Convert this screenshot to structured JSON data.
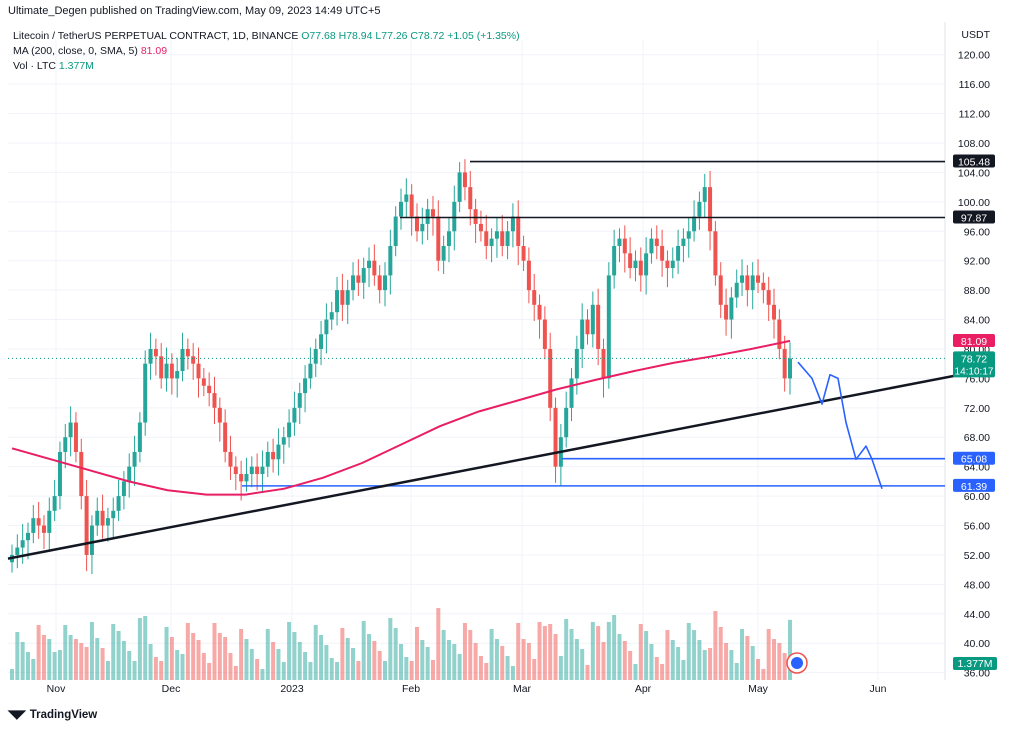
{
  "header": {
    "publisher_line": "Ultimate_Degen published on TradingView.com, May 09, 2023 14:49 UTC+5"
  },
  "legend": {
    "symbol": "Litecoin / TetherUS PERPETUAL CONTRACT, 1D, BINANCE",
    "ohlc": "O77.68 H78.94 L77.26 C78.72 +1.05 (+1.35%)",
    "ma_label": "MA (200, close, 0, SMA, 5)",
    "ma_value": "81.09",
    "vol_label": "Vol · LTC",
    "vol_value": "1.377M"
  },
  "footer": {
    "brand": "TradingView"
  },
  "chart_data": {
    "type": "candlestick",
    "currency_label": "USDT",
    "y_ticks": [
      "120.00",
      "116.00",
      "112.00",
      "108.00",
      "104.00",
      "100.00",
      "96.00",
      "92.00",
      "88.00",
      "84.00",
      "80.00",
      "76.00",
      "72.00",
      "68.00",
      "64.00",
      "60.00",
      "56.00",
      "52.00",
      "48.00",
      "44.00",
      "40.00",
      "36.00"
    ],
    "ylim": [
      35,
      122
    ],
    "x_ticks": [
      "Nov",
      "Dec",
      "2023",
      "Feb",
      "Mar",
      "Apr",
      "May",
      "Jun"
    ],
    "price_labels": [
      {
        "text": "105.48",
        "value": 105.48,
        "color": "#131722"
      },
      {
        "text": "97.87",
        "value": 97.87,
        "color": "#131722"
      },
      {
        "text": "81.09",
        "value": 81.09,
        "color": "#e91e63"
      },
      {
        "text": "78.72",
        "value": 78.72,
        "color": "#089981"
      },
      {
        "text": "65.08",
        "value": 65.08,
        "color": "#2962ff"
      },
      {
        "text": "61.39",
        "value": 61.39,
        "color": "#2962ff"
      }
    ],
    "countdown": "14:10:17",
    "volume_label": "1.377M",
    "horizontal_levels": [
      105.48,
      97.87,
      65.08,
      61.39
    ],
    "candles_close_approx": [
      52,
      53,
      54,
      55,
      57,
      56,
      55,
      58,
      60,
      66,
      68,
      70,
      66,
      60,
      52,
      56,
      58,
      56,
      57,
      58,
      60,
      62,
      64,
      66,
      70,
      78,
      80,
      79,
      76,
      78,
      76,
      77,
      80,
      79,
      78,
      76,
      75,
      74,
      72,
      70,
      66,
      64,
      63,
      62,
      63,
      64,
      63,
      64,
      66,
      65,
      67,
      68,
      70,
      72,
      74,
      76,
      78,
      80,
      82,
      84,
      85,
      88,
      86,
      88,
      90,
      89,
      91,
      92,
      90,
      88,
      90,
      94,
      98,
      100,
      101,
      98,
      96,
      97,
      99,
      98,
      92,
      94,
      96,
      100,
      104,
      102,
      99,
      97,
      96,
      94,
      95,
      96,
      94,
      96,
      98,
      94,
      92,
      88,
      86,
      84,
      80,
      72,
      64,
      68,
      72,
      76,
      80,
      84,
      82,
      86,
      80,
      76,
      90,
      94,
      95,
      93,
      91,
      92,
      90,
      93,
      95,
      94,
      92,
      91,
      92,
      94,
      95,
      96,
      98,
      100,
      102,
      96,
      90,
      86,
      84,
      87,
      89,
      90,
      88,
      90,
      89,
      88,
      86,
      84,
      80,
      76,
      78.72
    ],
    "ma200_approx": [
      66.5,
      65,
      63.5,
      62,
      60.8,
      60.2,
      60.2,
      61,
      62.5,
      64.5,
      67,
      69.5,
      71.5,
      73,
      74.5,
      75.8,
      77,
      78.1,
      79,
      80,
      81.09
    ],
    "volume_scale_note": "volume bars in lower pane",
    "annotations": "drawn forecast path descending toward support levels"
  }
}
